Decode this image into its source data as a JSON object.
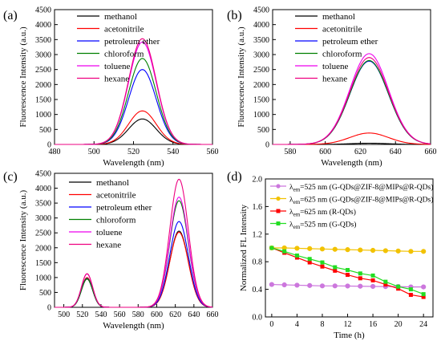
{
  "chart_data": [
    {
      "type": "line",
      "panel_label": "(a)",
      "xlabel": "Wavelength (nm)",
      "ylabel": "Fluorescence Intensity (a.u.)",
      "xlim": [
        480,
        560
      ],
      "ylim": [
        0,
        4500
      ],
      "xticks": [
        480,
        500,
        520,
        540,
        560
      ],
      "yticks": [
        0,
        500,
        1000,
        1500,
        2000,
        2500,
        3000,
        3500,
        4000,
        4500
      ],
      "legend_position": "top-right",
      "peak_shape": {
        "type": "gaussian",
        "center": 524.5,
        "sigma": 7
      },
      "series": [
        {
          "name": "methanol",
          "color": "#000000",
          "peak": 850
        },
        {
          "name": "acetonitrile",
          "color": "#ff0000",
          "peak": 1120
        },
        {
          "name": "petroleum ether",
          "color": "#0000ff",
          "peak": 2500
        },
        {
          "name": "chloroform",
          "color": "#008000",
          "peak": 2870
        },
        {
          "name": "toluene",
          "color": "#ee00ee",
          "peak": 3420
        },
        {
          "name": "hexane",
          "color": "#ee0080",
          "peak": 3530
        }
      ]
    },
    {
      "type": "line",
      "panel_label": "(b)",
      "xlabel": "Wavelength (nm)",
      "ylabel": "Fluorescence Intensity (a.u.)",
      "xlim": [
        570,
        660
      ],
      "ylim": [
        0,
        4500
      ],
      "xticks": [
        580,
        600,
        620,
        640,
        660
      ],
      "yticks": [
        0,
        500,
        1000,
        1500,
        2000,
        2500,
        3000,
        3500,
        4000,
        4500
      ],
      "legend_position": "top-right",
      "peak_shape": {
        "type": "gaussian",
        "center": 625,
        "sigma": 11
      },
      "series": [
        {
          "name": "methanol",
          "color": "#000000",
          "peak": 40
        },
        {
          "name": "acetonitrile",
          "color": "#ff0000",
          "peak": 380
        },
        {
          "name": "petroleum ether",
          "color": "#0000ff",
          "peak": 2780
        },
        {
          "name": "chloroform",
          "color": "#008000",
          "peak": 2800
        },
        {
          "name": "toluene",
          "color": "#ee00ee",
          "peak": 3030
        },
        {
          "name": "hexane",
          "color": "#ee0080",
          "peak": 2900
        }
      ]
    },
    {
      "type": "line",
      "panel_label": "(c)",
      "xlabel": "Wavelength (nm)",
      "ylabel": "Fluorescence Intensity (a.u.)",
      "xlim": [
        490,
        660
      ],
      "ylim": [
        0,
        4500
      ],
      "xticks": [
        500,
        520,
        540,
        560,
        580,
        600,
        620,
        640,
        660
      ],
      "yticks": [
        0,
        500,
        1000,
        1500,
        2000,
        2500,
        3000,
        3500,
        4000,
        4500
      ],
      "legend_position": "top-left",
      "peaks": [
        {
          "center": 525,
          "sigma": 6
        },
        {
          "center": 624,
          "sigma": 10
        }
      ],
      "series": [
        {
          "name": "methanol",
          "color": "#000000",
          "peak_values": [
            950,
            2560
          ]
        },
        {
          "name": "acetonitrile",
          "color": "#ff0000",
          "peak_values": [
            1000,
            2520
          ]
        },
        {
          "name": "petroleum ether",
          "color": "#0000ff",
          "peak_values": [
            970,
            2880
          ]
        },
        {
          "name": "chloroform",
          "color": "#008000",
          "peak_values": [
            960,
            3580
          ]
        },
        {
          "name": "toluene",
          "color": "#ee00ee",
          "peak_values": [
            1120,
            3700
          ]
        },
        {
          "name": "hexane",
          "color": "#ee0080",
          "peak_values": [
            1130,
            4300
          ]
        }
      ]
    },
    {
      "type": "line",
      "panel_label": "(d)",
      "xlabel": "Time (h)",
      "ylabel": "Normalized FL Intensity",
      "xlim": [
        -1,
        25.5
      ],
      "ylim": [
        0,
        2.0
      ],
      "xticks": [
        0,
        4,
        8,
        12,
        16,
        20,
        24
      ],
      "yticks": [
        0.0,
        0.4,
        0.8,
        1.2,
        1.6,
        2.0
      ],
      "legend_position": "top",
      "x": [
        0,
        2,
        4,
        6,
        8,
        10,
        12,
        14,
        16,
        18,
        20,
        22,
        24
      ],
      "series": [
        {
          "name_prefix": "λ",
          "name_sub": "em",
          "name_rest": "=525 nm (G-QDs@ZIF-8@MIPs@R-QDs)",
          "color": "#cc77dd",
          "marker": "circle",
          "values": [
            0.47,
            0.465,
            0.46,
            0.455,
            0.45,
            0.45,
            0.448,
            0.445,
            0.442,
            0.44,
            0.44,
            0.435,
            0.435
          ]
        },
        {
          "name_prefix": "λ",
          "name_sub": "em",
          "name_rest": "=625 nm (G-QDs@ZIF-8@MIPs@R-QDs)",
          "color": "#f2c200",
          "marker": "circle",
          "values": [
            1.0,
            1.0,
            0.995,
            0.99,
            0.985,
            0.98,
            0.975,
            0.97,
            0.965,
            0.96,
            0.955,
            0.95,
            0.95
          ]
        },
        {
          "name_prefix": "λ",
          "name_sub": "em",
          "name_rest": "=625 nm (R-QDs)",
          "color": "#ff0000",
          "marker": "square",
          "values": [
            1.0,
            0.93,
            0.86,
            0.79,
            0.73,
            0.67,
            0.61,
            0.56,
            0.53,
            0.47,
            0.41,
            0.32,
            0.29
          ]
        },
        {
          "name_prefix": "λ",
          "name_sub": "em",
          "name_rest": "=525 nm (G-QDs)",
          "color": "#22dd22",
          "marker": "square",
          "values": [
            1.0,
            0.95,
            0.89,
            0.84,
            0.79,
            0.72,
            0.68,
            0.63,
            0.6,
            0.51,
            0.44,
            0.4,
            0.33
          ]
        }
      ]
    }
  ]
}
